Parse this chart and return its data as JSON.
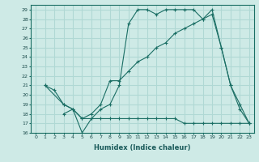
{
  "xlabel": "Humidex (Indice chaleur)",
  "ylabel": "",
  "bg_color": "#ceeae6",
  "grid_color": "#b0d8d4",
  "line_color": "#1a6e64",
  "xlim": [
    -0.5,
    23.5
  ],
  "ylim": [
    16,
    29.5
  ],
  "yticks": [
    16,
    17,
    18,
    19,
    20,
    21,
    22,
    23,
    24,
    25,
    26,
    27,
    28,
    29
  ],
  "xticks": [
    0,
    1,
    2,
    3,
    4,
    5,
    6,
    7,
    8,
    9,
    10,
    11,
    12,
    13,
    14,
    15,
    16,
    17,
    18,
    19,
    20,
    21,
    22,
    23
  ],
  "line1_x": [
    1,
    2,
    3,
    4,
    5,
    6,
    7,
    8,
    9,
    10,
    11,
    12,
    13,
    14,
    15,
    16,
    17,
    18,
    19,
    20,
    21,
    22,
    23
  ],
  "line1_y": [
    21.0,
    20.5,
    19.0,
    18.5,
    16.0,
    17.5,
    18.5,
    19.0,
    21.0,
    27.5,
    29.0,
    29.0,
    28.5,
    29.0,
    29.0,
    29.0,
    29.0,
    28.0,
    29.0,
    25.0,
    21.0,
    18.5,
    17.0
  ],
  "line2_x": [
    1,
    3,
    4,
    5,
    6,
    7,
    8,
    9,
    10,
    11,
    12,
    13,
    14,
    15,
    16,
    17,
    18,
    19,
    20,
    21,
    22,
    23
  ],
  "line2_y": [
    21.0,
    19.0,
    18.5,
    17.5,
    18.0,
    19.0,
    21.5,
    21.5,
    22.5,
    23.5,
    24.0,
    25.0,
    25.5,
    26.5,
    27.0,
    27.5,
    28.0,
    28.5,
    25.0,
    21.0,
    19.0,
    17.0
  ],
  "line3_x": [
    3,
    4,
    5,
    6,
    7,
    8,
    9,
    10,
    11,
    12,
    13,
    14,
    15,
    16,
    17,
    18,
    19,
    20,
    21,
    22,
    23
  ],
  "line3_y": [
    18.0,
    18.5,
    17.5,
    17.5,
    17.5,
    17.5,
    17.5,
    17.5,
    17.5,
    17.5,
    17.5,
    17.5,
    17.5,
    17.0,
    17.0,
    17.0,
    17.0,
    17.0,
    17.0,
    17.0,
    17.0
  ]
}
